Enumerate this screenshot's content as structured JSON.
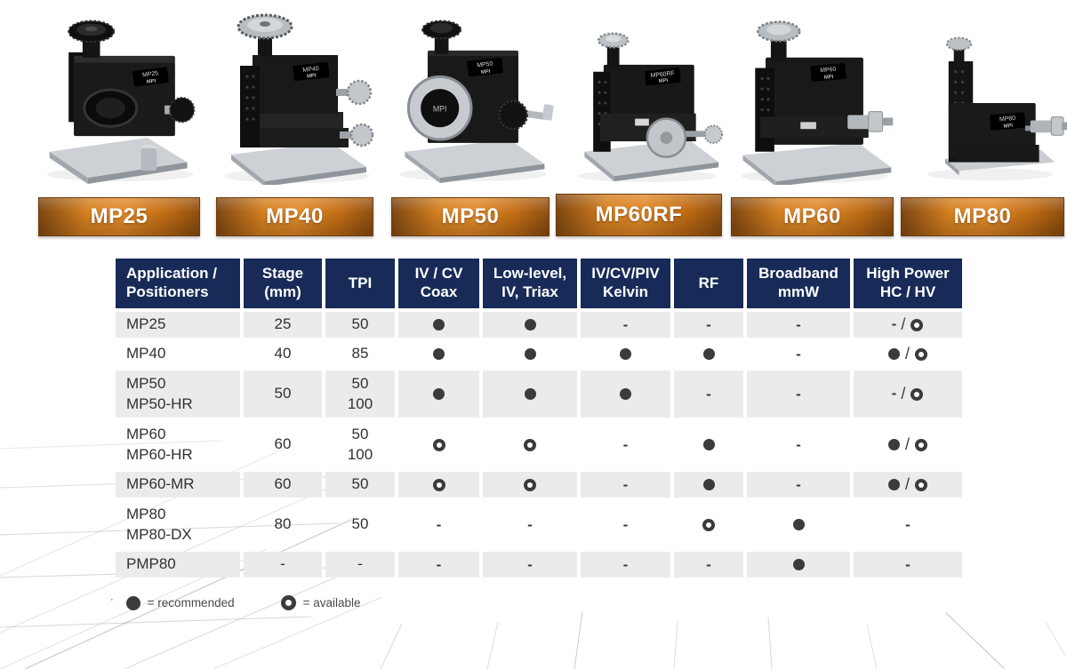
{
  "brand": "MPI",
  "products": [
    {
      "label": "MP25"
    },
    {
      "label": "MP40"
    },
    {
      "label": "MP50"
    },
    {
      "label": "MP60RF"
    },
    {
      "label": "MP60"
    },
    {
      "label": "MP80"
    }
  ],
  "colors": {
    "header_bg": "#182b58",
    "header_text": "#ffffff",
    "row_stripe": "#ebebeb",
    "symbol": "#3b3b3b",
    "plate_orange_mid": "#e08a28",
    "plate_orange_edge": "#7b430f"
  },
  "table": {
    "columns": [
      "Application /\nPositioners",
      "Stage\n(mm)",
      "TPI",
      "IV / CV\nCoax",
      "Low-level,\nIV, Triax",
      "IV/CV/PIV\nKelvin",
      "RF",
      "Broadband\nmmW",
      "High Power\nHC / HV"
    ],
    "rows": [
      {
        "positioners": [
          "MP25"
        ],
        "stage": "25",
        "tpi": [
          "50"
        ],
        "cells": [
          "R",
          "R",
          "-",
          "-",
          "-",
          "-/A"
        ]
      },
      {
        "positioners": [
          "MP40"
        ],
        "stage": "40",
        "tpi": [
          "85"
        ],
        "cells": [
          "R",
          "R",
          "R",
          "R",
          "-",
          "R/A"
        ]
      },
      {
        "positioners": [
          "MP50",
          "MP50-HR"
        ],
        "stage": "50",
        "tpi": [
          "50",
          "100"
        ],
        "cells": [
          "R",
          "R",
          "R",
          "-",
          "-",
          "-/A"
        ]
      },
      {
        "positioners": [
          "MP60",
          "MP60-HR"
        ],
        "stage": "60",
        "tpi": [
          "50",
          "100"
        ],
        "cells": [
          "A",
          "A",
          "-",
          "R",
          "-",
          "R/A"
        ]
      },
      {
        "positioners": [
          "MP60-MR"
        ],
        "stage": "60",
        "tpi": [
          "50"
        ],
        "cells": [
          "A",
          "A",
          "-",
          "R",
          "-",
          "R/A"
        ]
      },
      {
        "positioners": [
          "MP80",
          "MP80-DX"
        ],
        "stage": "80",
        "tpi": [
          "50"
        ],
        "cells": [
          "-",
          "-",
          "-",
          "A",
          "R",
          "-"
        ]
      },
      {
        "positioners": [
          "PMP80"
        ],
        "stage": "-",
        "tpi": [
          "-"
        ],
        "cells": [
          "-",
          "-",
          "-",
          "-",
          "R",
          "-"
        ]
      }
    ],
    "symbol_legend": {
      "R": "recommended",
      "A": "available",
      "-": "none"
    }
  },
  "legend": {
    "note_mark": "·",
    "recommended_label": "= recommended",
    "available_label": "= available"
  }
}
